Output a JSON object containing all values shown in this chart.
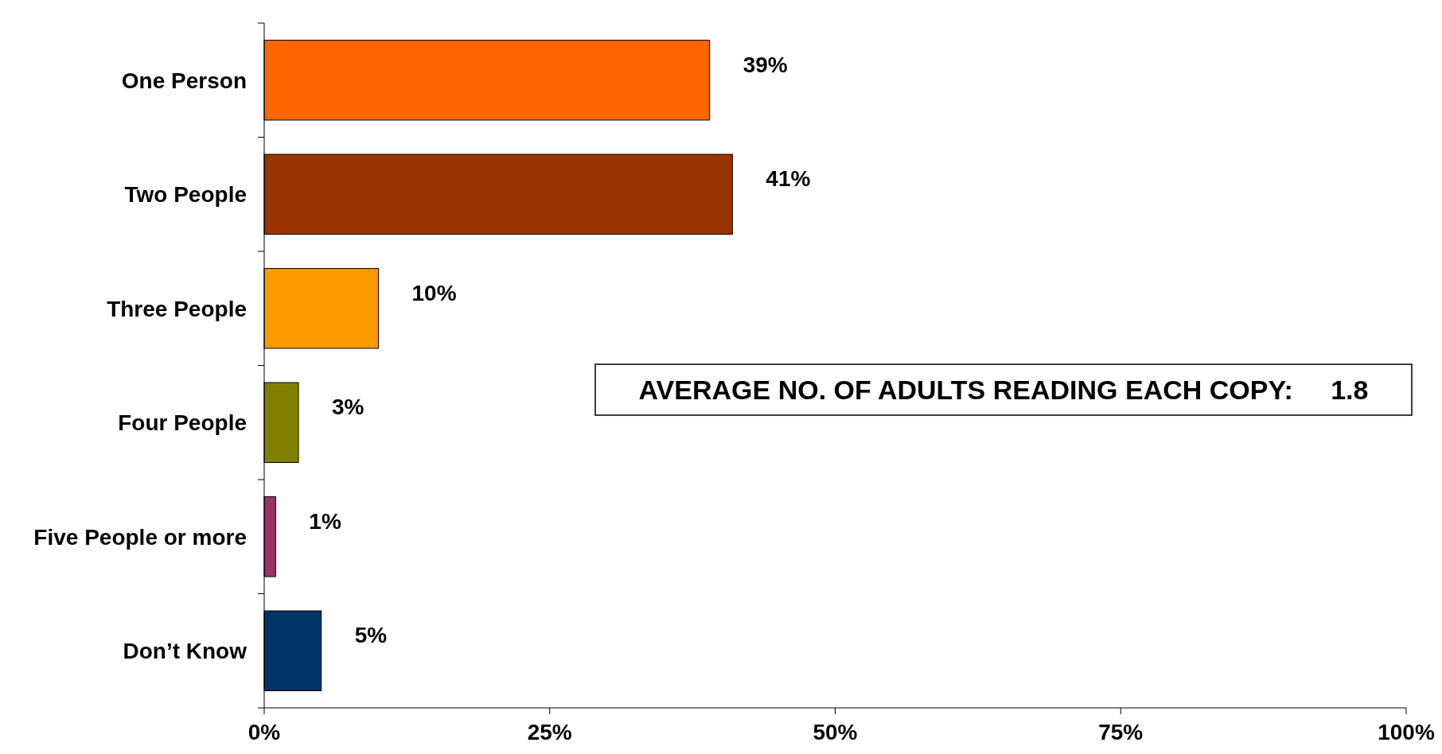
{
  "chart_data": {
    "type": "bar",
    "orientation": "horizontal",
    "categories": [
      "One Person",
      "Two People",
      "Three People",
      "Four People",
      "Five People or more",
      "Don’t Know"
    ],
    "values": [
      39,
      41,
      10,
      3,
      1,
      5
    ],
    "colors": [
      "#ff6600",
      "#993300",
      "#ff9900",
      "#808000",
      "#993366",
      "#003366"
    ],
    "value_labels": [
      "39%",
      "41%",
      "10%",
      "3%",
      "1%",
      "5%"
    ],
    "xlim": [
      0,
      100
    ],
    "xticks": [
      {
        "value": 0,
        "label": "0%"
      },
      {
        "value": 25,
        "label": "25%"
      },
      {
        "value": 50,
        "label": "50%"
      },
      {
        "value": 75,
        "label": "75%"
      },
      {
        "value": 100,
        "label": "100%"
      }
    ],
    "grid": false,
    "annotations": [
      "AVERAGE NO. OF ADULTS READING EACH COPY:     1.8"
    ]
  }
}
